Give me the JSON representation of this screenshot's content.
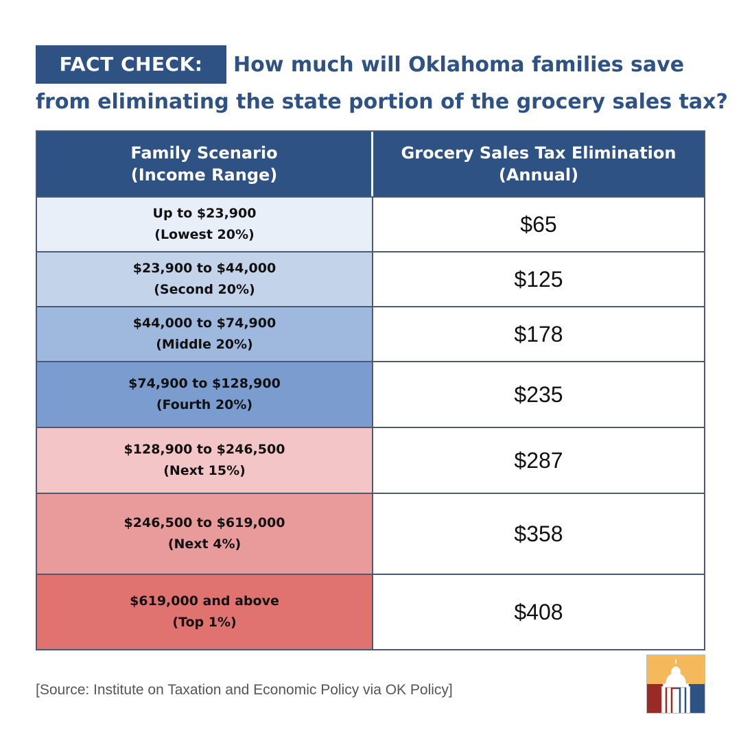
{
  "badge_label": "FACT CHECK:",
  "headline_line1": "How much will Oklahoma families save",
  "headline_line2": "from eliminating the state portion of the grocery sales tax?",
  "table": {
    "header_left_line1": "Family Scenario",
    "header_left_line2": "(Income Range)",
    "header_right_line1": "Grocery Sales Tax Elimination",
    "header_right_line2": "(Annual)",
    "rows": [
      {
        "range": "Up to $23,900",
        "group": "(Lowest 20%)",
        "amount": "$65",
        "color": "#e9eff8"
      },
      {
        "range": "$23,900 to $44,000",
        "group": "(Second 20%)",
        "amount": "$125",
        "color": "#c3d3ea"
      },
      {
        "range": "$44,000 to $74,900",
        "group": "(Middle 20%)",
        "amount": "$178",
        "color": "#9fb9de"
      },
      {
        "range": "$74,900 to $128,900",
        "group": "(Fourth 20%)",
        "amount": "$235",
        "color": "#7a9ccf"
      },
      {
        "range": "$128,900 to $246,500",
        "group": "(Next 15%)",
        "amount": "$287",
        "color": "#f3c5c6"
      },
      {
        "range": "$246,500 to $619,000",
        "group": "(Next 4%)",
        "amount": "$358",
        "color": "#e99a9a"
      },
      {
        "range": "$619,000 and above",
        "group": "(Top 1%)",
        "amount": "$408",
        "color": "#e0736f"
      }
    ]
  },
  "source": "[Source: Institute on Taxation and Economic Policy via OK Policy]",
  "logo": {
    "icon": "capitol-dome-icon",
    "colors": [
      "#f5b85a",
      "#9a2a25",
      "#2e5283"
    ]
  }
}
